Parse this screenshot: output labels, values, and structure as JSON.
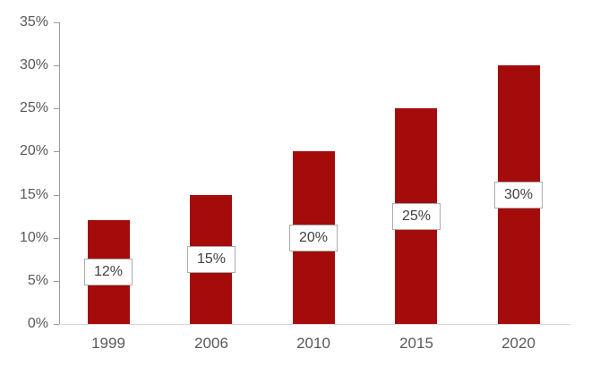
{
  "chart_data": {
    "type": "bar",
    "title": "",
    "xlabel": "",
    "ylabel": "",
    "categories": [
      "1999",
      "2006",
      "2010",
      "2015",
      "2020"
    ],
    "values": [
      12,
      15,
      20,
      25,
      30
    ],
    "bar_labels": [
      "12%",
      "15%",
      "20%",
      "25%",
      "30%"
    ],
    "ytick_values": [
      0,
      5,
      10,
      15,
      20,
      25,
      30,
      35
    ],
    "ytick_labels": [
      "0%",
      "5%",
      "10%",
      "15%",
      "20%",
      "25%",
      "30%",
      "35%"
    ],
    "ylim": [
      0,
      35
    ],
    "grid": false,
    "legend": "none",
    "colors": {
      "bar": "#A40B0B",
      "y_axis_line": "#9A9A9A",
      "x_axis_line": "#D6D6D6",
      "tick_text": "#595959",
      "category_text": "#595959",
      "label_box_bg": "#FFFFFF",
      "label_box_border": "#ABABAB",
      "label_text": "#404040"
    }
  }
}
